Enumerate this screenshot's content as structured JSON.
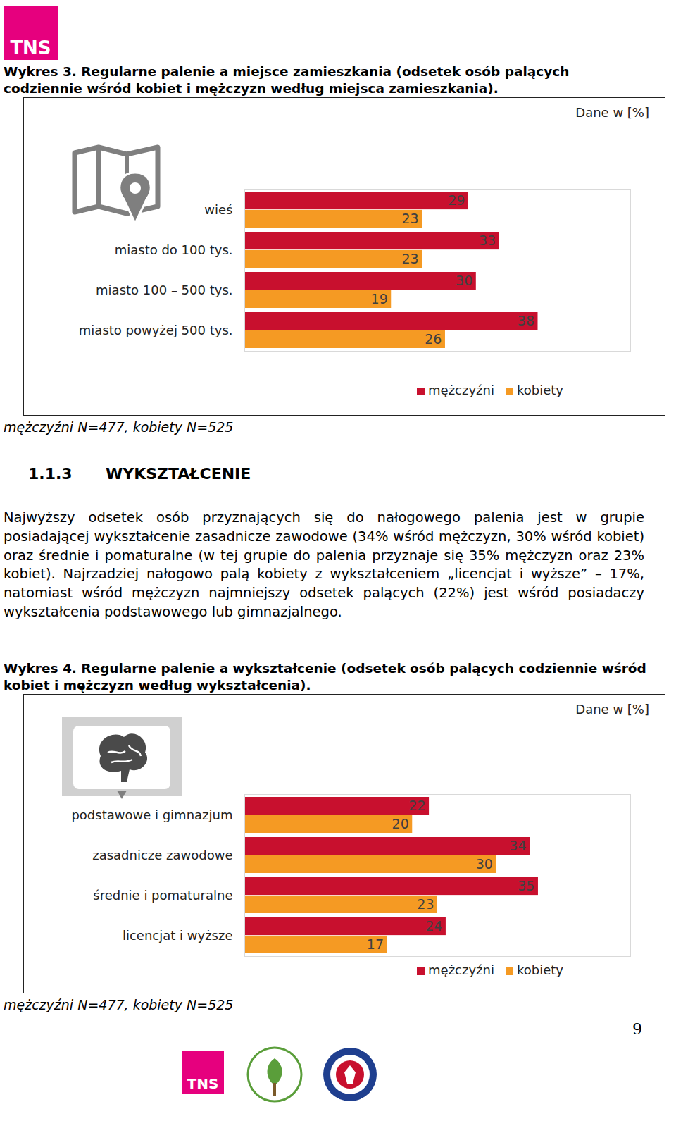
{
  "document": {
    "logo": "TNS",
    "page_number": "9",
    "section": {
      "number": "1.1.3",
      "title": "WYKSZTAŁCENIE"
    },
    "paragraph": "Najwyższy odsetek osób przyznających się do nałogowego palenia jest w grupie posiadającej wykształcenie zasadnicze zawodowe (34% wśród mężczyzn, 30% wśród kobiet) oraz średnie i pomaturalne (w tej grupie do palenia przyznaje się 35% mężczyzn oraz 23% kobiet). Najrzadziej nałogowo palą kobiety z wykształceniem „licencjat i wyższe” – 17%, natomiast wśród mężczyzn najmniejszy odsetek palących (22%) jest wśród posiadaczy wykształcenia podstawowego lub gimnazjalnego.",
    "footer_logos": [
      "TNS"
    ]
  },
  "chart_data": [
    {
      "type": "bar",
      "orientation": "horizontal",
      "title": "Wykres 3. Regularne palenie a miejsce zamieszkania (odsetek osób palących codziennie wśród kobiet i mężczyzn według miejsca zamieszkania).",
      "annotations": [
        "Dane w [%]"
      ],
      "caption": "mężczyźni N=477, kobiety N=525",
      "categories": [
        "wieś",
        "miasto do 100 tys.",
        "miasto 100 – 500 tys.",
        "miasto powyżej 500 tys."
      ],
      "series": [
        {
          "name": "mężczyźni",
          "color": "#c8102e",
          "values": [
            29,
            33,
            30,
            38
          ]
        },
        {
          "name": "kobiety",
          "color": "#f59a23",
          "values": [
            23,
            23,
            19,
            26
          ]
        }
      ],
      "xlim": [
        0,
        50
      ],
      "xticks": [],
      "tick_labels": "y",
      "data_labels": true,
      "grid": false,
      "legend": "bottom-right"
    },
    {
      "type": "bar",
      "orientation": "horizontal",
      "title": "Wykres 4. Regularne palenie a wykształcenie (odsetek osób palących codziennie wśród kobiet i mężczyzn według wykształcenia).",
      "annotations": [
        "Dane w [%]"
      ],
      "caption": "mężczyźni N=477, kobiety N=525",
      "categories": [
        "podstawowe i gimnazjum",
        "zasadnicze zawodowe",
        "średnie i pomaturalne",
        "licencjat i wyższe"
      ],
      "series": [
        {
          "name": "mężczyźni",
          "color": "#c8102e",
          "values": [
            22,
            34,
            35,
            24
          ]
        },
        {
          "name": "kobiety",
          "color": "#f59a23",
          "values": [
            20,
            30,
            23,
            17
          ]
        }
      ],
      "xlim": [
        0,
        46
      ],
      "xticks": [],
      "tick_labels": "y",
      "data_labels": true,
      "grid": false,
      "legend": "bottom-right"
    }
  ]
}
